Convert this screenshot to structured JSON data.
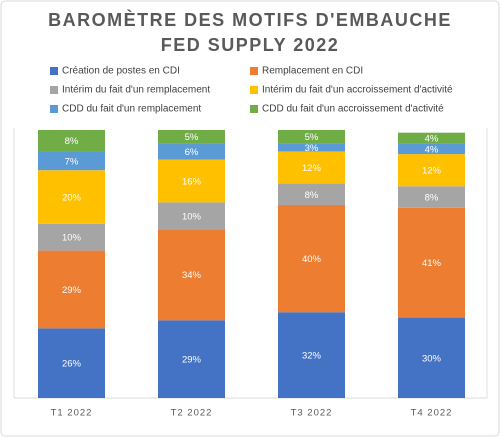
{
  "chart_data": {
    "type": "stacked-bar",
    "title": "BAROMÈTRE DES MOTIFS D'EMBAUCHE FED SUPPLY 2022",
    "categories": [
      "T1 2022",
      "T2 2022",
      "T3 2022",
      "T4 2022"
    ],
    "series": [
      {
        "name": "Création de postes en CDI",
        "color": "#4472c4",
        "values": [
          26,
          29,
          32,
          30
        ],
        "value_labels": [
          "26%",
          "29%",
          "32%",
          "30%"
        ]
      },
      {
        "name": "Remplacement en CDI",
        "color": "#ed7d31",
        "values": [
          29,
          34,
          40,
          41
        ],
        "value_labels": [
          "29%",
          "34%",
          "40%",
          "41%"
        ]
      },
      {
        "name": "Intérim du fait d'un remplacement",
        "color": "#a5a5a5",
        "values": [
          10,
          10,
          8,
          8
        ],
        "value_labels": [
          "10%",
          "10%",
          "8%",
          "8%"
        ]
      },
      {
        "name": "Intérim du fait d'un accroissement d'activité",
        "color": "#ffc000",
        "values": [
          20,
          16,
          12,
          12
        ],
        "value_labels": [
          "20%",
          "16%",
          "12%",
          "12%"
        ]
      },
      {
        "name": "CDD du fait d'un remplacement",
        "color": "#5b9bd5",
        "values": [
          7,
          6,
          3,
          4
        ],
        "value_labels": [
          "7%",
          "6%",
          "3%",
          "4%"
        ]
      },
      {
        "name": "CDD du fait d'un accroissement d'activité",
        "color": "#70ad47",
        "values": [
          8,
          5,
          5,
          4
        ],
        "value_labels": [
          "8%",
          "5%",
          "5%",
          "4%"
        ]
      }
    ]
  }
}
